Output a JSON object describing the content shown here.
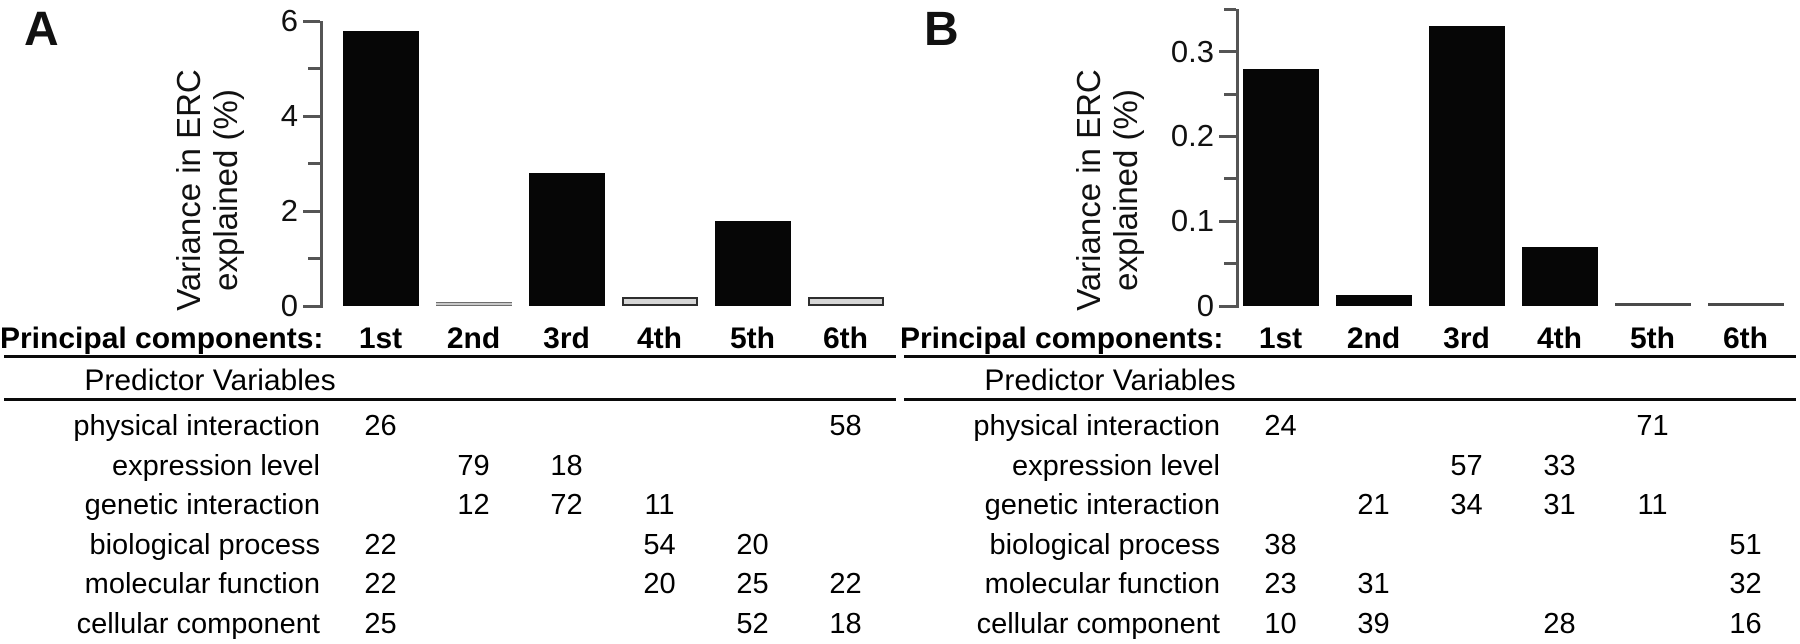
{
  "chart_data": [
    {
      "panel": "A",
      "type": "bar",
      "ylabel_lines": [
        "Variance in ERC",
        "explained (%)"
      ],
      "categories": [
        "1st",
        "2nd",
        "3rd",
        "4th",
        "5th",
        "6th"
      ],
      "values": [
        5.8,
        0.03,
        2.8,
        0.2,
        1.8,
        0.2
      ],
      "bar_styles": [
        "black",
        "flat",
        "black",
        "grayout",
        "black",
        "grayout"
      ],
      "ylim": [
        0,
        6
      ],
      "yticks": [
        {
          "v": 0,
          "major": true,
          "label": "0"
        },
        {
          "v": 1,
          "major": false,
          "label": ""
        },
        {
          "v": 2,
          "major": true,
          "label": "2"
        },
        {
          "v": 3,
          "major": false,
          "label": ""
        },
        {
          "v": 4,
          "major": true,
          "label": "4"
        },
        {
          "v": 5,
          "major": false,
          "label": ""
        },
        {
          "v": 6,
          "major": true,
          "label": "6"
        }
      ],
      "header_label": "Principal components:",
      "table": {
        "section_title": "Predictor Variables",
        "rows": [
          {
            "label": "physical interaction",
            "values": [
              "26",
              "",
              "",
              "",
              "",
              "58"
            ]
          },
          {
            "label": "expression level",
            "values": [
              "",
              "79",
              "18",
              "",
              "",
              ""
            ]
          },
          {
            "label": "genetic interaction",
            "values": [
              "",
              "12",
              "72",
              "11",
              "",
              ""
            ]
          },
          {
            "label": "biological process",
            "values": [
              "22",
              "",
              "",
              "54",
              "20",
              ""
            ]
          },
          {
            "label": "molecular function",
            "values": [
              "22",
              "",
              "",
              "20",
              "25",
              "22"
            ]
          },
          {
            "label": "cellular component",
            "values": [
              "25",
              "",
              "",
              "",
              "52",
              "18"
            ]
          }
        ]
      }
    },
    {
      "panel": "B",
      "type": "bar",
      "ylabel_lines": [
        "Variance in ERC",
        "explained (%)"
      ],
      "categories": [
        "1st",
        "2nd",
        "3rd",
        "4th",
        "5th",
        "6th"
      ],
      "values": [
        0.28,
        0.013,
        0.33,
        0.07,
        0.004,
        0.003
      ],
      "bar_styles": [
        "black",
        "black",
        "black",
        "black",
        "thinline",
        "thinline"
      ],
      "ylim": [
        0,
        0.35
      ],
      "yticks": [
        {
          "v": 0,
          "major": true,
          "label": "0"
        },
        {
          "v": 0.05,
          "major": false,
          "label": ""
        },
        {
          "v": 0.1,
          "major": true,
          "label": "0.1"
        },
        {
          "v": 0.15,
          "major": false,
          "label": ""
        },
        {
          "v": 0.2,
          "major": true,
          "label": "0.2"
        },
        {
          "v": 0.25,
          "major": false,
          "label": ""
        },
        {
          "v": 0.3,
          "major": true,
          "label": "0.3"
        },
        {
          "v": 0.35,
          "major": false,
          "label": ""
        }
      ],
      "header_label": "Principal components:",
      "table": {
        "section_title": "Predictor Variables",
        "rows": [
          {
            "label": "physical interaction",
            "values": [
              "24",
              "",
              "",
              "",
              "71",
              ""
            ]
          },
          {
            "label": "expression level",
            "values": [
              "",
              "",
              "57",
              "33",
              "",
              ""
            ]
          },
          {
            "label": "genetic interaction",
            "values": [
              "",
              "21",
              "34",
              "31",
              "11",
              ""
            ]
          },
          {
            "label": "biological process",
            "values": [
              "38",
              "",
              "",
              "",
              "",
              "51"
            ]
          },
          {
            "label": "molecular function",
            "values": [
              "23",
              "31",
              "",
              "",
              "",
              "32"
            ]
          },
          {
            "label": "cellular component",
            "values": [
              "10",
              "39",
              "",
              "28",
              "",
              "16"
            ]
          }
        ]
      }
    }
  ],
  "colors": {
    "bar_black": "#060606",
    "bar_gray_fill": "#d6d6d6",
    "bar_gray_border": "#2e2e2e",
    "flat_line_gray": "#c9c9c9",
    "thin_dark_line": "#4a4a4a",
    "axis": "#555555",
    "text": "#000000",
    "rule": "#0a0a0a"
  }
}
